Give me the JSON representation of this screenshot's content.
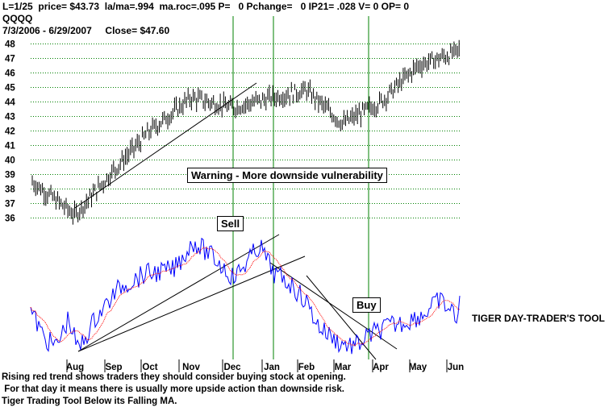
{
  "header": {
    "line1": "L=1/25  price= $43.73  la/ma=.994  ma.roc=.095 P=   0 Pchange=   0 IP21= .028 V= 0 OP= 0",
    "line2": "QQQQ",
    "line3": "7/3/2006 - 6/29/2007     Close= $47.60"
  },
  "annotations": {
    "warning": "Warning - More downside vulnerability",
    "sell": "Sell",
    "buy": "Buy",
    "tool_label": "TIGER DAY-TRADER'S TOOL"
  },
  "caption": {
    "line1": "Rising red trend shows traders they should consider buying stock at opening.",
    "line2": " For that day it means there is usually more upside action than downside risk.",
    "line3": "Tiger Trading Tool Below its Falling MA."
  },
  "colors": {
    "price_bars": "#000000",
    "indicator": "#0000ff",
    "indicator_ma": "#ff0000",
    "signal_lines": "#008000",
    "gridlines": "#008000"
  },
  "chart_data": {
    "type": "line",
    "title": "QQQQ",
    "date_range": "7/3/2006 - 6/29/2007",
    "price_axis": {
      "ticks": [
        36,
        37,
        38,
        39,
        40,
        41,
        42,
        43,
        44,
        45,
        46,
        47,
        48
      ],
      "ylim": [
        35,
        48
      ],
      "grid": true,
      "gridline_style": "dotted"
    },
    "months": [
      "Aug",
      "Sep",
      "Oct",
      "Nov",
      "Dec",
      "Jan",
      "Feb",
      "Mar",
      "Apr",
      "May",
      "Jun"
    ],
    "signal_lines_at": [
      "Dec",
      "Jan",
      "Apr"
    ],
    "series": [
      {
        "name": "QQQQ",
        "style": "daily high-low bars",
        "monthly_values": [
          38.5,
          36.2,
          39.3,
          42.0,
          44.3,
          43.6,
          44.3,
          44.8,
          42.5,
          44.0,
          46.5,
          47.4,
          47.6
        ],
        "points_at": [
          "Jul",
          "Aug",
          "Sep",
          "Oct",
          "Nov",
          "Dec",
          "Jan",
          "Feb",
          "Mar",
          "Apr",
          "May",
          "Jun",
          "Jun 29"
        ]
      },
      {
        "name": "TIGER DAY-TRADER'S TOOL",
        "style": "oscillator with moving average"
      }
    ]
  }
}
